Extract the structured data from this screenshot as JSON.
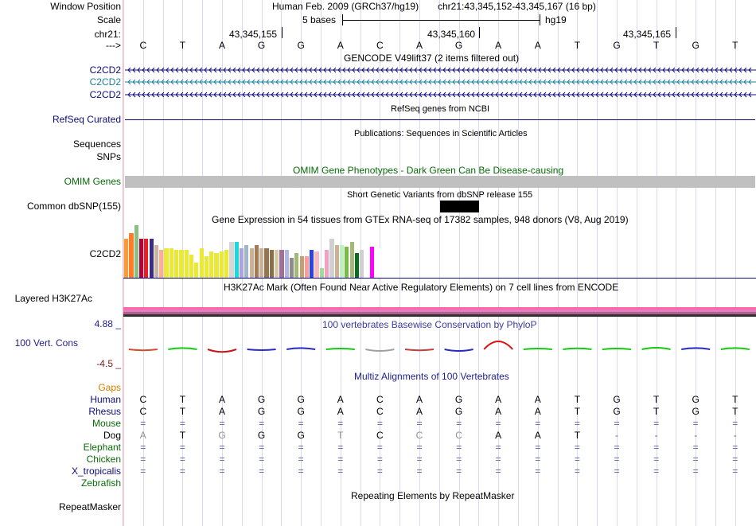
{
  "header": {
    "window_position_label": "Window Position",
    "scale_label": "Scale",
    "chrom_label": "chr21:",
    "arrow_label": "--->",
    "assembly": "Human Feb. 2009 (GRCh37/hg19)",
    "position": "chr21:43,345,152-43,345,167 (16 bp)",
    "scale_text": "5 bases",
    "scale_db": "hg19",
    "coords": [
      "43,345,155",
      "43,345,160",
      "43,345,165"
    ]
  },
  "sequence": [
    "C",
    "T",
    "A",
    "G",
    "G",
    "A",
    "C",
    "A",
    "G",
    "A",
    "A",
    "T",
    "G",
    "T",
    "G",
    "T"
  ],
  "tracks": {
    "gencode": {
      "title": "GENCODE V49lift37 (2 items filtered out)",
      "items": [
        "C2CD2",
        "C2CD2",
        "C2CD2"
      ]
    },
    "refseq": {
      "title": "RefSeq genes from NCBI",
      "label": "RefSeq Curated"
    },
    "publications": {
      "title": "Publications: Sequences in Scientific Articles",
      "labels": [
        "Sequences",
        "SNPs"
      ]
    },
    "omim": {
      "title": "OMIM Gene Phenotypes - Dark Green Can Be Disease-causing",
      "label": "OMIM Genes"
    },
    "dbsnp": {
      "title": "Short Genetic Variants from dbSNP release 155",
      "label": "Common dbSNP(155)"
    },
    "gtex": {
      "title": "Gene Expression in 54 tissues from GTEx RNA-seq of 17382 samples, 948 donors (V8, Aug 2019)",
      "label": "C2CD2",
      "values": [
        48,
        54,
        64,
        48,
        48,
        48,
        40,
        34,
        36,
        36,
        34,
        34,
        34,
        28,
        18,
        36,
        26,
        32,
        30,
        32,
        34,
        44,
        44,
        36,
        40,
        36,
        40,
        36,
        36,
        34,
        34,
        34,
        34,
        24,
        30,
        26,
        26,
        34,
        32,
        12,
        34,
        48,
        40,
        40,
        38,
        44,
        30,
        34,
        40,
        38,
        38,
        36,
        38,
        6
      ],
      "colors": [
        "#ff9a33",
        "#fe7c2a",
        "#8cbf84",
        "#b2003a",
        "#ec1b24",
        "#3b2b84",
        "#c9b4a4",
        "#feac95",
        "#ebe93b",
        "#eaea35",
        "#e9e935",
        "#eaea35",
        "#eaea35",
        "#eaea35",
        "#eaea35",
        "#eaea35",
        "#eaea35",
        "#eaea35",
        "#eaea35",
        "#eaea35",
        "#eaea35",
        "#d6d6d6",
        "#19dada",
        "#afa2e3",
        "#9fb5cc",
        "#cbb197",
        "#a67a52",
        "#cbb197",
        "#937453",
        "#8a6f4a",
        "#d8c9a8",
        "#a07098",
        "#b3b6e0",
        "#8d8d8d",
        "#a4b877",
        "#c3a070",
        "#ff9a9a",
        "#2c43de",
        "#f8b8c4",
        "#a0db97",
        "#f4a0c4",
        "#cfd0cf",
        "#cbb197",
        "#bdf0bd",
        "#79bb45",
        "#a4b877",
        "#0a6b22",
        "#cfd0cf",
        "#ffffff",
        "#ff00ff",
        "#ffffff",
        "#ffffff",
        "#ffffff",
        "#ffffff"
      ]
    },
    "h3k27ac": {
      "title": "H3K27Ac Mark (Often Found Near Active Regulatory Elements) on 7 cell lines from ENCODE",
      "label": "Layered H3K27Ac"
    },
    "phylop": {
      "title": "100 vertebrates Basewise Conservation by PhyloP",
      "label": "100 Vert. Cons",
      "max": "4.88 _",
      "min": "-4.5 _",
      "values": [
        -0.3,
        0.4,
        -0.8,
        -0.2,
        0.4,
        0.1,
        -0.5,
        -0.3,
        -0.5,
        2.5,
        0.2,
        0.3,
        0.1,
        0.5,
        0.4,
        0.4
      ]
    },
    "multiz": {
      "title": "Multiz Alignments of 100 Vertebrates",
      "gaps_label": "Gaps",
      "species": [
        {
          "name": "Human",
          "bases": [
            "C",
            "T",
            "A",
            "G",
            "G",
            "A",
            "C",
            "A",
            "G",
            "A",
            "A",
            "T",
            "G",
            "T",
            "G",
            "T"
          ]
        },
        {
          "name": "Rhesus",
          "bases": [
            "C",
            "T",
            "A",
            "G",
            "G",
            "A",
            "C",
            "A",
            "G",
            "A",
            "A",
            "T",
            "G",
            "T",
            "G",
            "T"
          ]
        },
        {
          "name": "Mouse",
          "bases": [
            "=",
            "=",
            "=",
            "=",
            "=",
            "=",
            "=",
            "=",
            "=",
            "=",
            "=",
            "=",
            "=",
            "=",
            "=",
            "="
          ]
        },
        {
          "name": "Dog",
          "bases": [
            "A",
            "T",
            "G",
            "G",
            "G",
            "T",
            "C",
            "C",
            "C",
            "A",
            "A",
            "T",
            "-",
            "-",
            "-",
            "-"
          ]
        },
        {
          "name": "Elephant",
          "bases": [
            "=",
            "=",
            "=",
            "=",
            "=",
            "=",
            "=",
            "=",
            "=",
            "=",
            "=",
            "=",
            "=",
            "=",
            "=",
            "="
          ]
        },
        {
          "name": "Chicken",
          "bases": [
            "=",
            "=",
            "=",
            "=",
            "=",
            "=",
            "=",
            "=",
            "=",
            "=",
            "=",
            "=",
            "=",
            "=",
            "=",
            "="
          ]
        },
        {
          "name": "X_tropicalis",
          "bases": [
            "=",
            "=",
            "=",
            "=",
            "=",
            "=",
            "=",
            "=",
            "=",
            "=",
            "=",
            "=",
            "=",
            "=",
            "=",
            "="
          ]
        },
        {
          "name": "Zebrafish",
          "bases": [
            "",
            "",
            "",
            "",
            "",
            "",
            "",
            "",
            "",
            "",
            "",
            "",
            "",
            "",
            "",
            ""
          ]
        }
      ]
    },
    "repeatmasker": {
      "title": "Repeating Elements by RepeatMasker",
      "label": "RepeatMasker"
    }
  },
  "colors": {
    "gene_navy": "#0c0c78",
    "gene_teal": "#1e7fa0",
    "omim_grey": "#c0c0c0",
    "h3k27ac_pink": "#ff66aa",
    "conservation_blue": "#3c3ca0"
  }
}
